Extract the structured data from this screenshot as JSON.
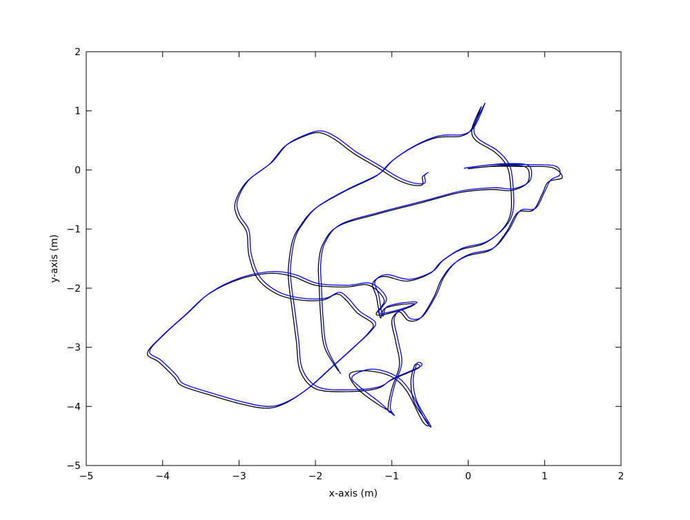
{
  "chart_data": {
    "type": "line",
    "title": "",
    "xlabel": "x-axis (m)",
    "ylabel": "y-axis (m)",
    "xlim": [
      -5,
      2
    ],
    "ylim": [
      -5,
      2
    ],
    "xticks": [
      -5,
      -4,
      -3,
      -2,
      -1,
      0,
      1,
      2
    ],
    "yticks": [
      -5,
      -4,
      -3,
      -2,
      -1,
      0,
      1,
      2
    ],
    "xtick_labels": [
      "−5",
      "−4",
      "−3",
      "−2",
      "−1",
      "0",
      "1",
      "2"
    ],
    "ytick_labels": [
      "−5",
      "−4",
      "−3",
      "−2",
      "−1",
      "0",
      "1",
      "2"
    ],
    "grid": false,
    "series": [
      {
        "color": "#000000",
        "points": [
          [
            -1.7,
            -3.4
          ],
          [
            -1.88,
            -3.0
          ],
          [
            -1.93,
            -2.5
          ],
          [
            -1.95,
            -2.0
          ],
          [
            -1.96,
            -1.6
          ],
          [
            -1.9,
            -1.25
          ],
          [
            -1.7,
            -0.95
          ],
          [
            -1.2,
            -0.75
          ],
          [
            -0.6,
            -0.55
          ],
          [
            -0.1,
            -0.38
          ],
          [
            0.3,
            -0.33
          ],
          [
            0.55,
            -0.35
          ],
          [
            0.75,
            -0.25
          ],
          [
            0.8,
            -0.1
          ],
          [
            0.75,
            0.05
          ],
          [
            0.5,
            0.08
          ],
          [
            0.2,
            0.05
          ],
          [
            0.0,
            0.02
          ],
          [
            0.3,
            0.06
          ],
          [
            0.7,
            0.06
          ],
          [
            1.1,
            0.04
          ],
          [
            1.23,
            -0.13
          ],
          [
            1.05,
            -0.2
          ],
          [
            0.97,
            -0.4
          ],
          [
            0.85,
            -0.68
          ],
          [
            0.65,
            -0.72
          ],
          [
            0.5,
            -1.05
          ],
          [
            0.3,
            -1.35
          ],
          [
            0.0,
            -1.45
          ],
          [
            -0.2,
            -1.6
          ],
          [
            -0.35,
            -1.85
          ],
          [
            -0.45,
            -2.15
          ],
          [
            -0.62,
            -2.5
          ],
          [
            -0.78,
            -2.55
          ],
          [
            -0.9,
            -2.4
          ],
          [
            -1.0,
            -2.55
          ],
          [
            -0.95,
            -2.9
          ],
          [
            -0.9,
            -3.3
          ],
          [
            -1.0,
            -3.7
          ],
          [
            -1.05,
            -4.05
          ],
          [
            -1.0,
            -4.1
          ],
          [
            -1.2,
            -3.95
          ],
          [
            -1.45,
            -3.7
          ],
          [
            -1.55,
            -3.45
          ],
          [
            -1.3,
            -3.4
          ],
          [
            -1.0,
            -3.5
          ],
          [
            -0.8,
            -3.75
          ],
          [
            -0.6,
            -4.25
          ],
          [
            -0.52,
            -4.3
          ],
          [
            -0.7,
            -3.95
          ],
          [
            -0.75,
            -3.6
          ],
          [
            -0.7,
            -3.3
          ],
          [
            -0.65,
            -3.35
          ],
          [
            -1.0,
            -3.55
          ],
          [
            -1.2,
            -3.7
          ],
          [
            -1.6,
            -3.75
          ],
          [
            -2.0,
            -3.7
          ],
          [
            -2.2,
            -3.4
          ],
          [
            -2.25,
            -2.9
          ],
          [
            -2.3,
            -2.4
          ],
          [
            -2.35,
            -1.9
          ],
          [
            -2.35,
            -1.6
          ],
          [
            -2.3,
            -1.2
          ],
          [
            -2.2,
            -0.95
          ],
          [
            -2.0,
            -0.65
          ],
          [
            -1.6,
            -0.35
          ],
          [
            -1.2,
            -0.1
          ],
          [
            -1.0,
            0.15
          ],
          [
            -0.7,
            0.4
          ],
          [
            -0.4,
            0.55
          ],
          [
            -0.1,
            0.57
          ],
          [
            0.05,
            0.7
          ],
          [
            0.17,
            1.07
          ],
          [
            0.05,
            0.7
          ],
          [
            0.1,
            0.5
          ],
          [
            0.35,
            0.3
          ],
          [
            0.5,
            0.08
          ],
          [
            0.55,
            -0.2
          ],
          [
            0.56,
            -0.7
          ],
          [
            0.45,
            -1.0
          ],
          [
            0.2,
            -1.25
          ],
          [
            -0.1,
            -1.35
          ],
          [
            -0.35,
            -1.55
          ],
          [
            -0.5,
            -1.75
          ],
          [
            -0.8,
            -1.88
          ],
          [
            -1.1,
            -1.8
          ],
          [
            -1.25,
            -1.92
          ],
          [
            -1.2,
            -2.15
          ],
          [
            -1.15,
            -2.5
          ],
          [
            -1.1,
            -2.35
          ],
          [
            -0.9,
            -2.28
          ],
          [
            -0.7,
            -2.27
          ],
          [
            -0.9,
            -2.38
          ],
          [
            -1.2,
            -2.45
          ],
          [
            -1.1,
            -2.2
          ],
          [
            -1.3,
            -1.95
          ],
          [
            -1.6,
            -1.98
          ],
          [
            -2.0,
            -1.95
          ],
          [
            -2.3,
            -1.8
          ],
          [
            -2.6,
            -1.75
          ],
          [
            -3.0,
            -1.85
          ],
          [
            -3.4,
            -2.1
          ],
          [
            -3.7,
            -2.45
          ],
          [
            -4.0,
            -2.8
          ],
          [
            -4.2,
            -3.1
          ],
          [
            -4.05,
            -3.25
          ],
          [
            -3.85,
            -3.5
          ],
          [
            -3.75,
            -3.65
          ],
          [
            -3.4,
            -3.8
          ],
          [
            -3.0,
            -3.95
          ],
          [
            -2.65,
            -4.03
          ],
          [
            -2.4,
            -3.95
          ],
          [
            -2.1,
            -3.7
          ],
          [
            -1.8,
            -3.35
          ],
          [
            -1.5,
            -3.0
          ],
          [
            -1.3,
            -2.75
          ],
          [
            -1.25,
            -2.6
          ],
          [
            -1.45,
            -2.42
          ],
          [
            -1.6,
            -2.2
          ],
          [
            -1.72,
            -2.1
          ],
          [
            -1.9,
            -2.2
          ],
          [
            -2.2,
            -2.2
          ],
          [
            -2.5,
            -2.1
          ],
          [
            -2.75,
            -1.85
          ],
          [
            -2.87,
            -1.45
          ],
          [
            -2.9,
            -1.05
          ],
          [
            -3.02,
            -0.8
          ],
          [
            -3.05,
            -0.55
          ],
          [
            -2.9,
            -0.2
          ],
          [
            -2.6,
            0.1
          ],
          [
            -2.4,
            0.4
          ],
          [
            -2.15,
            0.57
          ],
          [
            -1.95,
            0.63
          ],
          [
            -1.75,
            0.52
          ],
          [
            -1.5,
            0.28
          ],
          [
            -1.2,
            0.05
          ],
          [
            -0.95,
            -0.15
          ],
          [
            -0.75,
            -0.25
          ],
          [
            -0.6,
            -0.25
          ],
          [
            -0.6,
            -0.12
          ],
          [
            -0.55,
            -0.07
          ]
        ]
      },
      {
        "color": "#0000ff",
        "points": [
          [
            -1.67,
            -3.45
          ],
          [
            -1.85,
            -3.0
          ],
          [
            -1.9,
            -2.5
          ],
          [
            -1.92,
            -2.0
          ],
          [
            -1.93,
            -1.57
          ],
          [
            -1.87,
            -1.22
          ],
          [
            -1.67,
            -0.92
          ],
          [
            -1.17,
            -0.72
          ],
          [
            -0.57,
            -0.52
          ],
          [
            -0.07,
            -0.35
          ],
          [
            0.33,
            -0.3
          ],
          [
            0.58,
            -0.32
          ],
          [
            0.78,
            -0.22
          ],
          [
            0.83,
            -0.07
          ],
          [
            0.78,
            0.08
          ],
          [
            0.53,
            0.11
          ],
          [
            0.23,
            0.08
          ],
          [
            -0.05,
            0.03
          ],
          [
            0.33,
            0.09
          ],
          [
            0.73,
            0.09
          ],
          [
            1.13,
            0.07
          ],
          [
            1.2,
            -0.08
          ],
          [
            1.08,
            -0.17
          ],
          [
            1.0,
            -0.37
          ],
          [
            0.88,
            -0.65
          ],
          [
            0.68,
            -0.69
          ],
          [
            0.53,
            -1.02
          ],
          [
            0.33,
            -1.32
          ],
          [
            0.03,
            -1.42
          ],
          [
            -0.17,
            -1.57
          ],
          [
            -0.32,
            -1.82
          ],
          [
            -0.42,
            -2.12
          ],
          [
            -0.59,
            -2.47
          ],
          [
            -0.75,
            -2.52
          ],
          [
            -0.87,
            -2.37
          ],
          [
            -0.97,
            -2.52
          ],
          [
            -0.92,
            -2.87
          ],
          [
            -0.87,
            -3.27
          ],
          [
            -0.97,
            -3.67
          ],
          [
            -1.02,
            -4.02
          ],
          [
            -0.97,
            -4.15
          ],
          [
            -1.17,
            -3.92
          ],
          [
            -1.42,
            -3.67
          ],
          [
            -1.52,
            -3.5
          ],
          [
            -1.27,
            -3.37
          ],
          [
            -0.97,
            -3.47
          ],
          [
            -0.77,
            -3.72
          ],
          [
            -0.57,
            -4.22
          ],
          [
            -0.49,
            -4.33
          ],
          [
            -0.67,
            -3.92
          ],
          [
            -0.72,
            -3.57
          ],
          [
            -0.67,
            -3.27
          ],
          [
            -0.62,
            -3.32
          ],
          [
            -0.97,
            -3.52
          ],
          [
            -1.17,
            -3.67
          ],
          [
            -1.57,
            -3.72
          ],
          [
            -1.97,
            -3.67
          ],
          [
            -2.17,
            -3.37
          ],
          [
            -2.22,
            -2.87
          ],
          [
            -2.27,
            -2.37
          ],
          [
            -2.32,
            -1.87
          ],
          [
            -2.32,
            -1.57
          ],
          [
            -2.27,
            -1.17
          ],
          [
            -2.17,
            -0.92
          ],
          [
            -1.97,
            -0.62
          ],
          [
            -1.57,
            -0.32
          ],
          [
            -1.17,
            -0.07
          ],
          [
            -0.97,
            0.18
          ],
          [
            -0.67,
            0.43
          ],
          [
            -0.37,
            0.58
          ],
          [
            -0.07,
            0.6
          ],
          [
            0.08,
            0.73
          ],
          [
            0.22,
            1.13
          ],
          [
            0.08,
            0.73
          ],
          [
            0.13,
            0.53
          ],
          [
            0.38,
            0.33
          ],
          [
            0.53,
            0.11
          ],
          [
            0.58,
            -0.17
          ],
          [
            0.59,
            -0.67
          ],
          [
            0.48,
            -0.97
          ],
          [
            0.23,
            -1.22
          ],
          [
            -0.07,
            -1.32
          ],
          [
            -0.32,
            -1.52
          ],
          [
            -0.47,
            -1.72
          ],
          [
            -0.77,
            -1.85
          ],
          [
            -1.07,
            -1.77
          ],
          [
            -1.22,
            -1.89
          ],
          [
            -1.17,
            -2.12
          ],
          [
            -1.12,
            -2.47
          ],
          [
            -1.07,
            -2.32
          ],
          [
            -0.87,
            -2.25
          ],
          [
            -0.67,
            -2.24
          ],
          [
            -0.87,
            -2.35
          ],
          [
            -1.17,
            -2.42
          ],
          [
            -1.07,
            -2.17
          ],
          [
            -1.27,
            -1.92
          ],
          [
            -1.57,
            -1.95
          ],
          [
            -1.97,
            -1.92
          ],
          [
            -2.27,
            -1.77
          ],
          [
            -2.57,
            -1.72
          ],
          [
            -2.97,
            -1.82
          ],
          [
            -3.37,
            -2.07
          ],
          [
            -3.67,
            -2.42
          ],
          [
            -3.97,
            -2.77
          ],
          [
            -4.17,
            -3.07
          ],
          [
            -4.02,
            -3.22
          ],
          [
            -3.82,
            -3.47
          ],
          [
            -3.72,
            -3.62
          ],
          [
            -3.37,
            -3.77
          ],
          [
            -2.97,
            -3.92
          ],
          [
            -2.62,
            -4.0
          ],
          [
            -2.37,
            -3.92
          ],
          [
            -2.07,
            -3.67
          ],
          [
            -1.77,
            -3.32
          ],
          [
            -1.47,
            -2.97
          ],
          [
            -1.27,
            -2.72
          ],
          [
            -1.22,
            -2.57
          ],
          [
            -1.42,
            -2.39
          ],
          [
            -1.57,
            -2.17
          ],
          [
            -1.69,
            -2.07
          ],
          [
            -1.87,
            -2.17
          ],
          [
            -2.17,
            -2.17
          ],
          [
            -2.47,
            -2.07
          ],
          [
            -2.72,
            -1.82
          ],
          [
            -2.84,
            -1.42
          ],
          [
            -2.87,
            -1.02
          ],
          [
            -2.99,
            -0.77
          ],
          [
            -3.02,
            -0.52
          ],
          [
            -2.87,
            -0.17
          ],
          [
            -2.57,
            0.13
          ],
          [
            -2.37,
            0.43
          ],
          [
            -2.12,
            0.6
          ],
          [
            -1.92,
            0.66
          ],
          [
            -1.72,
            0.55
          ],
          [
            -1.47,
            0.31
          ],
          [
            -1.17,
            0.08
          ],
          [
            -0.92,
            -0.12
          ],
          [
            -0.72,
            -0.22
          ],
          [
            -0.57,
            -0.22
          ],
          [
            -0.57,
            -0.09
          ],
          [
            -0.52,
            -0.04
          ]
        ]
      }
    ]
  }
}
